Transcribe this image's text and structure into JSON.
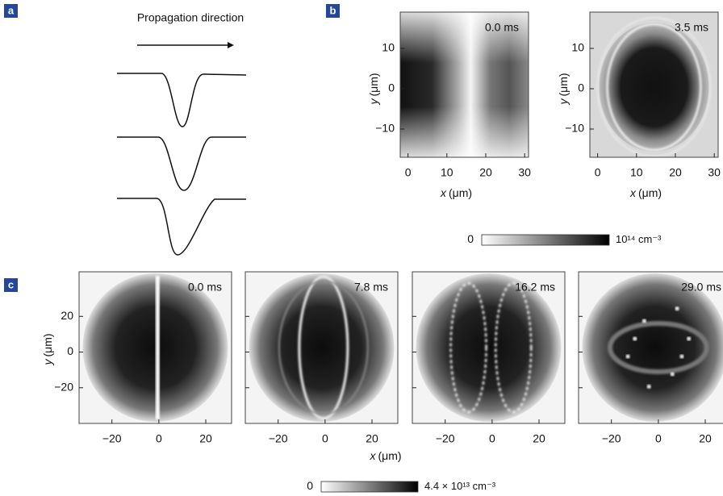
{
  "panels": [
    {
      "label": "a",
      "title": "Propagation direction"
    },
    {
      "label": "b",
      "frames": [
        "0.0 ms",
        "3.5 ms"
      ],
      "xlim": [
        -2,
        31
      ],
      "ylim": [
        -17,
        19
      ],
      "xticks": [
        0,
        10,
        20,
        30
      ],
      "yticks": [
        10,
        0,
        {
          "value": -10,
          "label": "−10"
        }
      ],
      "x_label": {
        "var": "x",
        "unit": "(μm)"
      },
      "y_label": {
        "var": "y",
        "unit": "(μm)"
      },
      "colorbar": {
        "min": "0",
        "max": "10¹⁴ cm⁻³"
      }
    },
    {
      "label": "c",
      "frames": [
        "0.0 ms",
        "7.8 ms",
        "16.2 ms",
        "29.0 ms"
      ],
      "xlim": [
        -34,
        31
      ],
      "ylim": [
        -40,
        45
      ],
      "xticks": [
        {
          "value": -20,
          "label": "−20"
        },
        0,
        20
      ],
      "yticks": [
        20,
        0,
        {
          "value": -20,
          "label": "−20"
        }
      ],
      "x_label": {
        "var": "x",
        "unit": "(μm)"
      },
      "y_label": {
        "var": "y",
        "unit": "(μm)"
      },
      "colorbar": {
        "min": "0",
        "max": "4.4 × 10¹³ cm⁻³"
      }
    }
  ]
}
